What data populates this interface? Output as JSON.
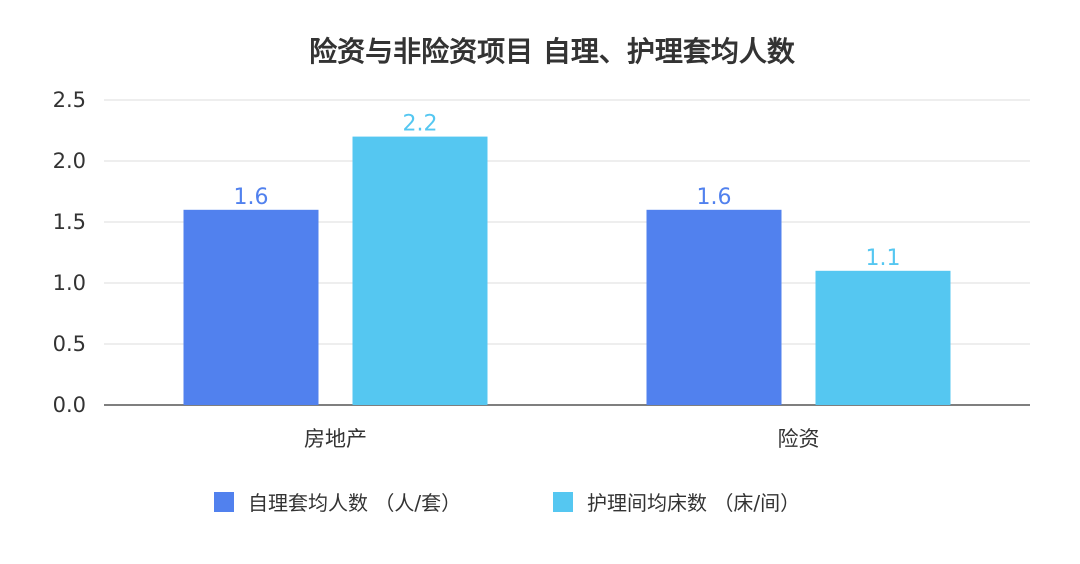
{
  "chart_data": {
    "type": "bar",
    "title": "险资与非险资项目 自理、护理套均人数",
    "categories": [
      "房地产",
      "险资"
    ],
    "series": [
      {
        "name": "自理套均人数 （人/套）",
        "color": "#5181EE",
        "values": [
          1.6,
          1.6
        ]
      },
      {
        "name": "护理间均床数 （床/间）",
        "color": "#55C7F1",
        "values": [
          2.2,
          1.1
        ]
      }
    ],
    "y_ticks": [
      "0.0",
      "0.5",
      "1.0",
      "1.5",
      "2.0",
      "2.5"
    ],
    "ylim": [
      0,
      2.5
    ],
    "grid": true,
    "legend_position": "bottom"
  }
}
